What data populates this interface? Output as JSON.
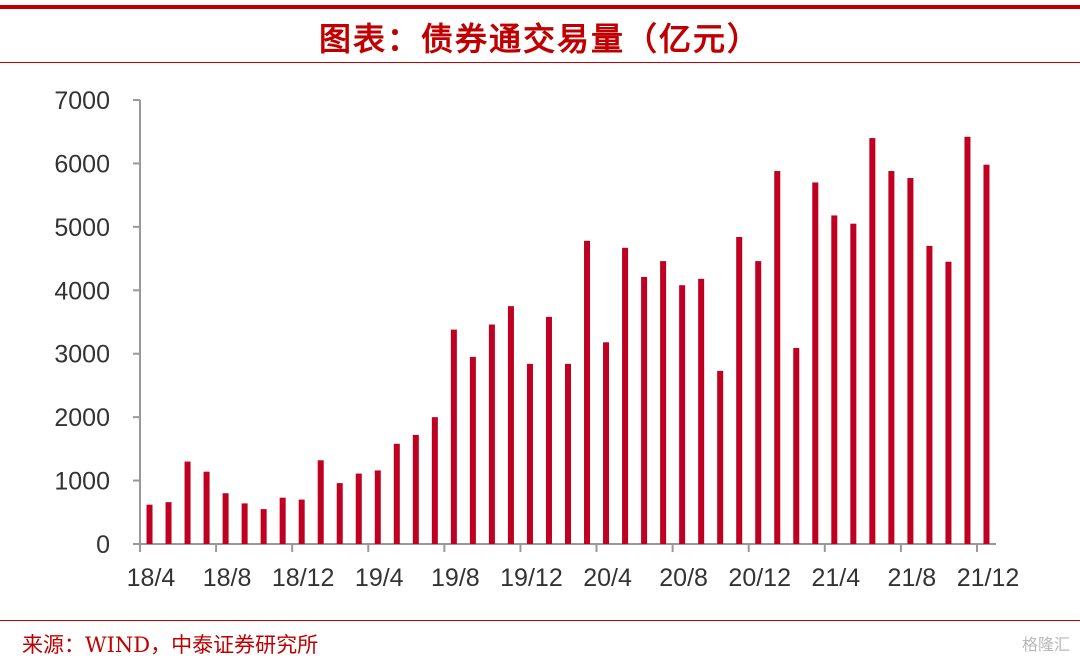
{
  "title": "图表：债券通交易量（亿元）",
  "source": "来源：WIND，中泰证券研究所",
  "watermark": "格隆汇",
  "colors": {
    "bar": "#c00020",
    "accent": "#c00000",
    "axis": "#999999"
  },
  "chart_data": {
    "type": "bar",
    "ylim": [
      0,
      7000
    ],
    "y_ticks": [
      0,
      1000,
      2000,
      3000,
      4000,
      5000,
      6000,
      7000
    ],
    "x_tick_labels": [
      "18/4",
      "18/8",
      "18/12",
      "19/4",
      "19/8",
      "19/12",
      "20/4",
      "20/8",
      "20/12",
      "21/4",
      "21/8",
      "21/12"
    ],
    "categories": [
      "18/4",
      "18/5",
      "18/6",
      "18/7",
      "18/8",
      "18/9",
      "18/10",
      "18/11",
      "18/12",
      "19/1",
      "19/2",
      "19/3",
      "19/4",
      "19/5",
      "19/6",
      "19/7",
      "19/8",
      "19/9",
      "19/10",
      "19/11",
      "19/12",
      "20/1",
      "20/2",
      "20/3",
      "20/4",
      "20/5",
      "20/6",
      "20/7",
      "20/8",
      "20/9",
      "20/10",
      "20/11",
      "20/12",
      "21/1",
      "21/2",
      "21/3",
      "21/4",
      "21/5",
      "21/6",
      "21/7",
      "21/8",
      "21/9",
      "21/10",
      "21/11",
      "21/12"
    ],
    "values": [
      620,
      660,
      1300,
      1140,
      800,
      640,
      550,
      730,
      700,
      1320,
      960,
      1110,
      1160,
      1580,
      1720,
      2000,
      3380,
      2950,
      3460,
      3750,
      2840,
      3580,
      2840,
      4780,
      3180,
      4670,
      4210,
      4460,
      4080,
      4180,
      2730,
      4840,
      4460,
      5880,
      3090,
      5700,
      5180,
      5050,
      6400,
      5880,
      5770,
      4700,
      4450,
      6420,
      5980
    ]
  }
}
